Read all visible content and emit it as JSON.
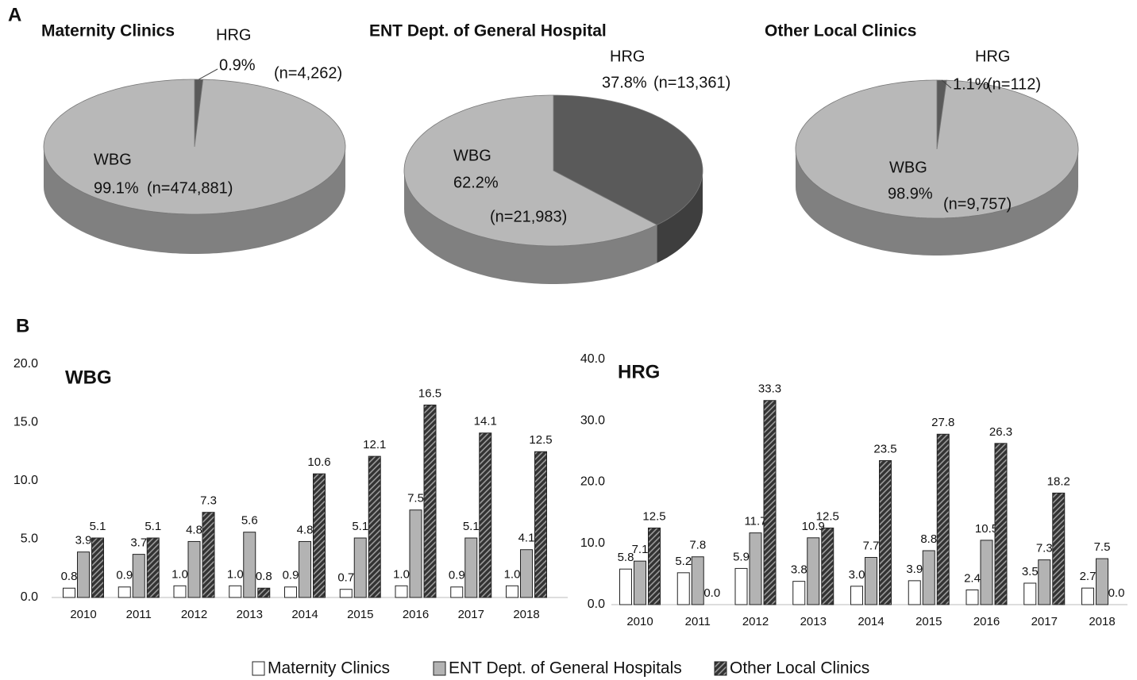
{
  "panel_labels": [
    "A",
    "B"
  ],
  "chart_data": [
    {
      "type": "pie",
      "title": "Maternity Clinics",
      "categories": [
        "HRG",
        "WBG"
      ],
      "values": [
        0.9,
        99.1
      ],
      "value_labels": [
        "0.9%",
        "99.1%"
      ],
      "count_labels": [
        "(n=4,262)",
        "(n=474,881)"
      ],
      "colors": [
        "#5a5a5a",
        "#b8b8b8"
      ]
    },
    {
      "type": "pie",
      "title": "ENT Dept. of General Hospital",
      "categories": [
        "HRG",
        "WBG"
      ],
      "values": [
        37.8,
        62.2
      ],
      "value_labels": [
        "37.8%",
        "62.2%"
      ],
      "count_labels": [
        "(n=13,361)",
        "(n=21,983)"
      ],
      "colors": [
        "#5a5a5a",
        "#b8b8b8"
      ]
    },
    {
      "type": "pie",
      "title": "Other Local Clinics",
      "categories": [
        "HRG",
        "WBG"
      ],
      "values": [
        1.1,
        98.9
      ],
      "value_labels": [
        "1.1%",
        "98.9%"
      ],
      "count_labels": [
        "(n=112)",
        "(n=9,757)"
      ],
      "colors": [
        "#5a5a5a",
        "#b8b8b8"
      ]
    },
    {
      "type": "bar",
      "title": "WBG",
      "categories": [
        "2010",
        "2011",
        "2012",
        "2013",
        "2014",
        "2015",
        "2016",
        "2017",
        "2018"
      ],
      "ylim": [
        0,
        20
      ],
      "yticks": [
        {
          "value": 0,
          "label": "0.0"
        },
        {
          "value": 5,
          "label": "5.0"
        },
        {
          "value": 10,
          "label": "10.0"
        },
        {
          "value": 15,
          "label": "15.0"
        },
        {
          "value": 20,
          "label": "20.0"
        }
      ],
      "legend": "bottom",
      "series": [
        {
          "name": "Maternity Clinics",
          "color": "#ffffff",
          "values": [
            0.8,
            0.9,
            1.0,
            1.0,
            0.9,
            0.7,
            1.0,
            0.9,
            1.0
          ],
          "value_labels": [
            "0.8",
            "0.9",
            "1.0",
            "1.0",
            "0.9",
            "0.7",
            "1.0",
            "0.9",
            "1.0"
          ]
        },
        {
          "name": "ENT Dept. of General Hospitals",
          "color": "#b3b3b3",
          "values": [
            3.9,
            3.7,
            4.8,
            5.6,
            4.8,
            5.1,
            7.5,
            5.1,
            4.1
          ],
          "value_labels": [
            "3.9",
            "3.7",
            "4.8",
            "5.6",
            "4.8",
            "5.1",
            "7.5",
            "5.1",
            "4.1"
          ]
        },
        {
          "name": "Other Local Clinics",
          "color": "#333333",
          "hatch": true,
          "values": [
            5.1,
            5.1,
            7.3,
            0.8,
            10.6,
            12.1,
            16.5,
            14.1,
            12.5
          ],
          "value_labels": [
            "5.1",
            "5.1",
            "7.3",
            "0.8",
            "10.6",
            "12.1",
            "16.5",
            "14.1",
            "12.5"
          ]
        }
      ]
    },
    {
      "type": "bar",
      "title": "HRG",
      "categories": [
        "2010",
        "2011",
        "2012",
        "2013",
        "2014",
        "2015",
        "2016",
        "2017",
        "2018"
      ],
      "ylim": [
        0,
        40
      ],
      "yticks": [
        {
          "value": 0,
          "label": "0.0"
        },
        {
          "value": 10,
          "label": "10.0"
        },
        {
          "value": 20,
          "label": "20.0"
        },
        {
          "value": 30,
          "label": "30.0"
        },
        {
          "value": 40,
          "label": "40.0"
        }
      ],
      "series": [
        {
          "color": "#ffffff",
          "values": [
            5.8,
            5.2,
            5.9,
            3.8,
            3.0,
            3.9,
            2.4,
            3.5,
            2.7
          ],
          "value_labels": [
            "5.8",
            "5.2",
            "5.9",
            "3.8",
            "3.0",
            "3.9",
            "2.4",
            "3.5",
            "2.7"
          ]
        },
        {
          "color": "#b3b3b3",
          "values": [
            7.1,
            7.8,
            11.7,
            10.9,
            7.7,
            8.8,
            10.5,
            7.3,
            7.5
          ],
          "value_labels": [
            "7.1",
            "7.8",
            "11.7",
            "10.9",
            "7.7",
            "8.8",
            "10.5",
            "7.3",
            "7.5"
          ]
        },
        {
          "color": "#333333",
          "hatch": true,
          "values": [
            12.5,
            0.0,
            33.3,
            12.5,
            23.5,
            27.8,
            26.3,
            18.2,
            0.0
          ],
          "value_labels": [
            "12.5",
            "0.0",
            "33.3",
            "12.5",
            "23.5",
            "27.8",
            "26.3",
            "18.2",
            "0.0"
          ]
        }
      ]
    }
  ]
}
